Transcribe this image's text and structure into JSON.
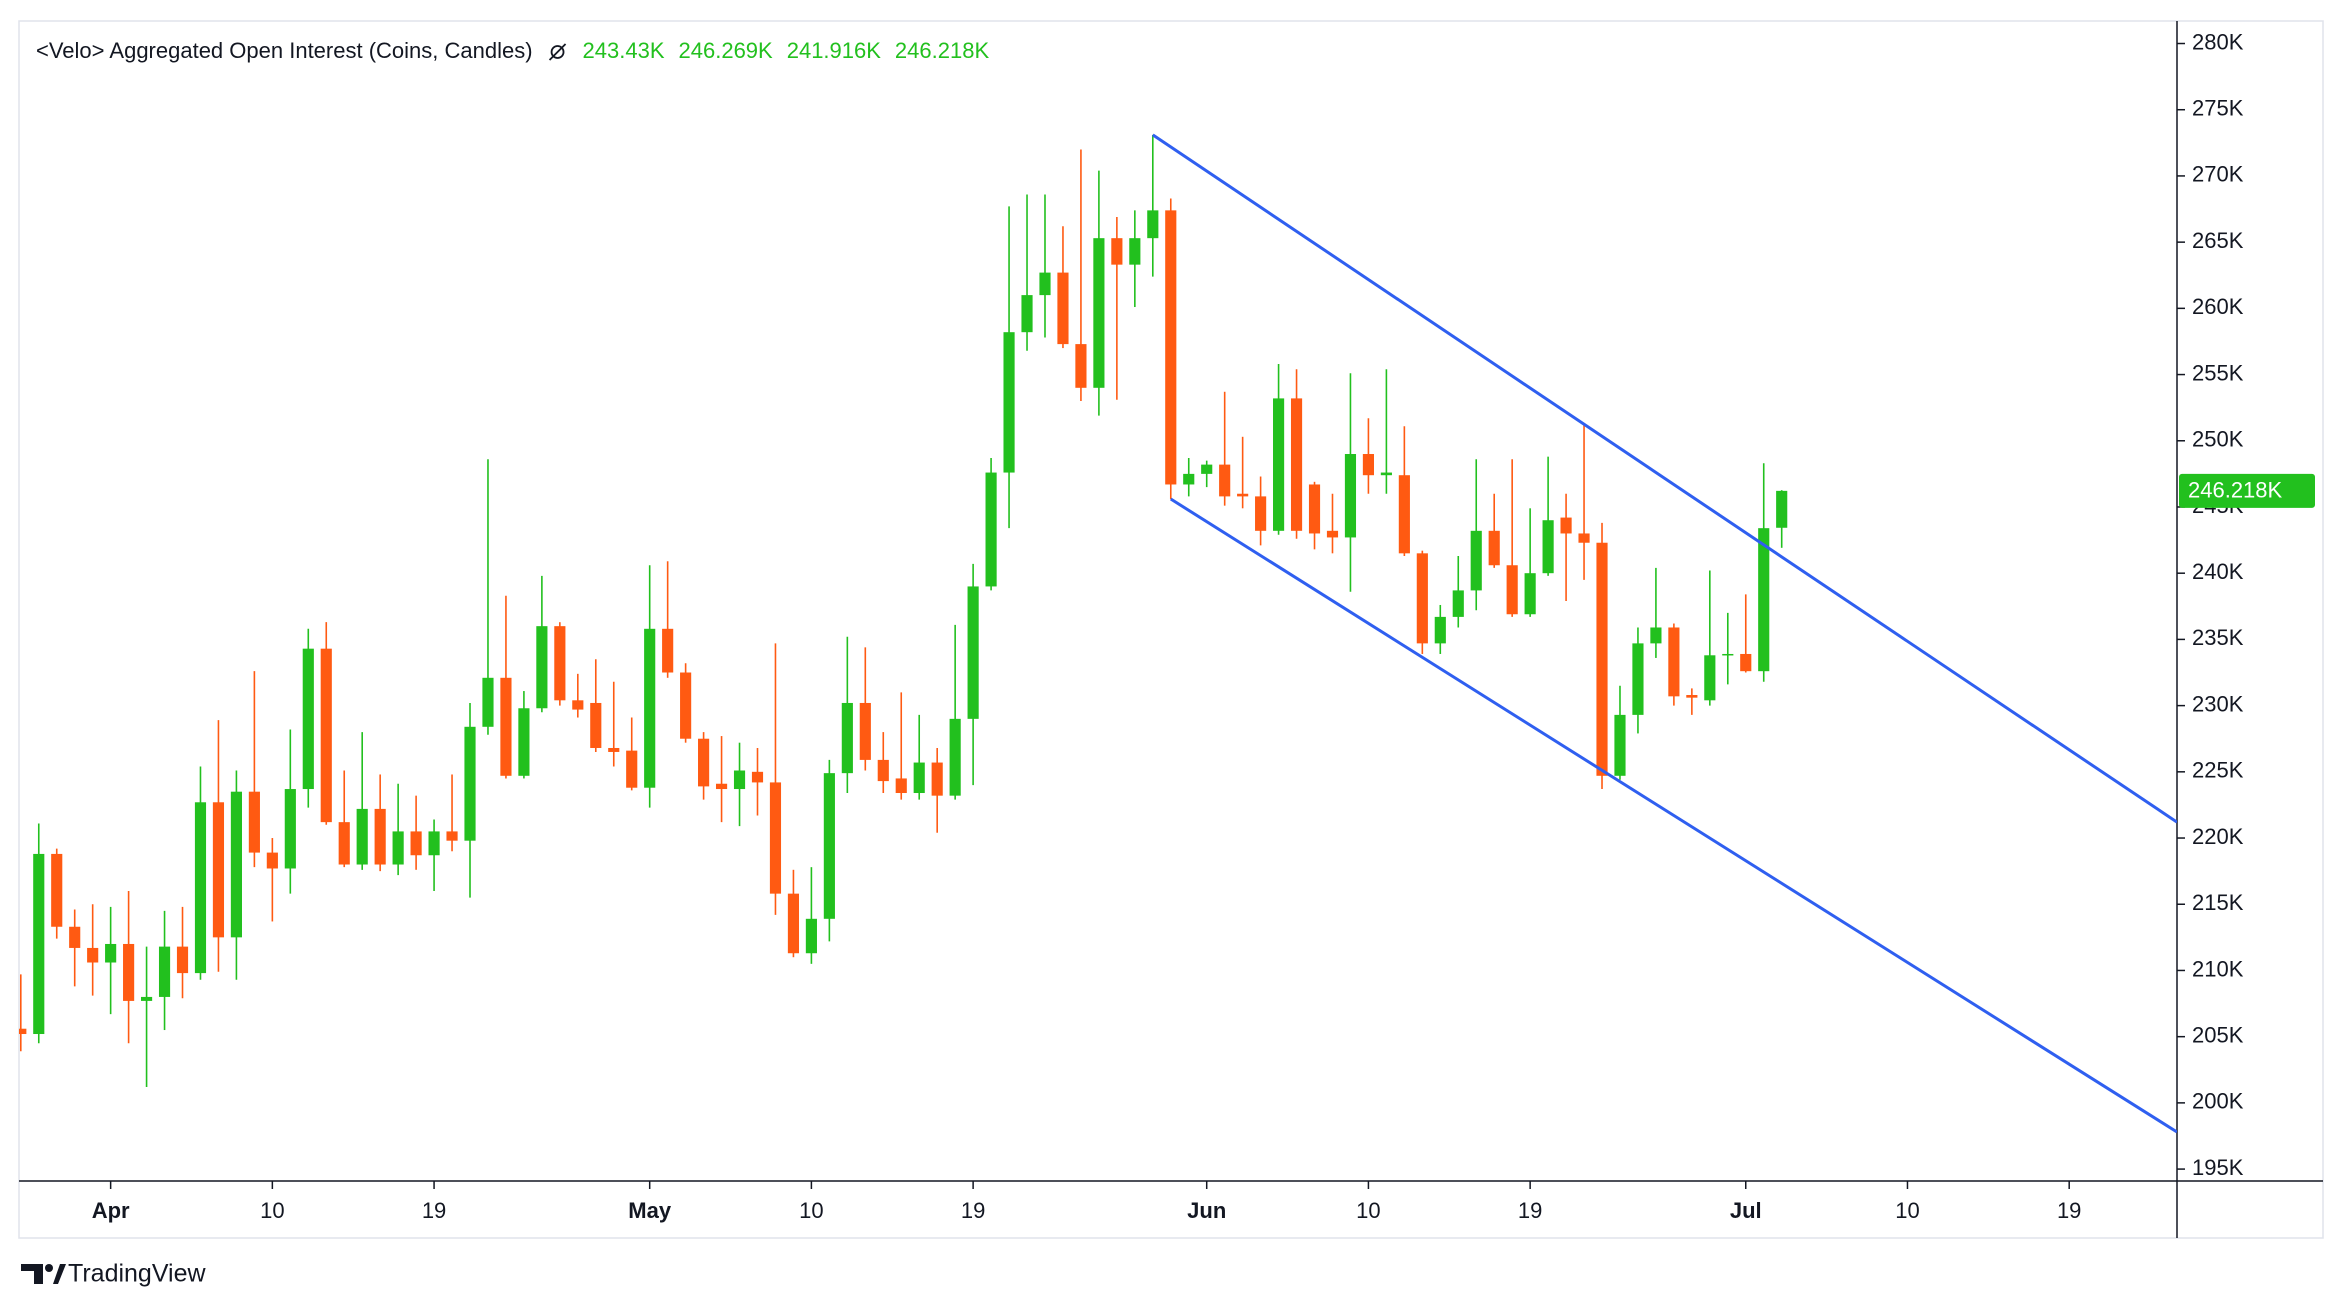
{
  "chart_data": {
    "type": "candlestick",
    "title": "<Velo> Aggregated Open Interest (Coins, Candles)",
    "ohlc_labels": [
      "243.43K",
      "246.269K",
      "241.916K",
      "246.218K"
    ],
    "last_price_label": "246.218K",
    "branding": "TradingView",
    "up_color": "#22c01e",
    "down_color": "#ff5a12",
    "x": [
      "Mar 27",
      "Mar 28",
      "Mar 29",
      "Mar 30",
      "Mar 31",
      "Apr 1",
      "Apr 2",
      "Apr 3",
      "Apr 4",
      "Apr 5",
      "Apr 6",
      "Apr 7",
      "Apr 8",
      "Apr 9",
      "Apr 10",
      "Apr 11",
      "Apr 12",
      "Apr 13",
      "Apr 14",
      "Apr 15",
      "Apr 16",
      "Apr 17",
      "Apr 18",
      "Apr 19",
      "Apr 20",
      "Apr 21",
      "Apr 22",
      "Apr 23",
      "Apr 24",
      "Apr 25",
      "Apr 26",
      "Apr 27",
      "Apr 28",
      "Apr 29",
      "Apr 30",
      "May 1",
      "May 2",
      "May 3",
      "May 4",
      "May 5",
      "May 6",
      "May 7",
      "May 8",
      "May 9",
      "May 10",
      "May 11",
      "May 12",
      "May 13",
      "May 14",
      "May 15",
      "May 16",
      "May 17",
      "May 18",
      "May 19",
      "May 20",
      "May 21",
      "May 22",
      "May 23",
      "May 24",
      "May 25",
      "May 26",
      "May 27",
      "May 28",
      "May 29",
      "May 30",
      "May 31",
      "Jun 1",
      "Jun 2",
      "Jun 3",
      "Jun 4",
      "Jun 5",
      "Jun 6",
      "Jun 7",
      "Jun 8",
      "Jun 9",
      "Jun 10",
      "Jun 11",
      "Jun 12",
      "Jun 13",
      "Jun 14",
      "Jun 15",
      "Jun 16",
      "Jun 17",
      "Jun 18",
      "Jun 19",
      "Jun 20",
      "Jun 21",
      "Jun 22",
      "Jun 23",
      "Jun 24",
      "Jun 25",
      "Jun 26",
      "Jun 27",
      "Jun 28",
      "Jun 29",
      "Jun 30",
      "Jul 1",
      "Jul 2",
      "Jul 3"
    ],
    "open": [
      205.6,
      205.2,
      218.8,
      213.3,
      211.7,
      210.6,
      212,
      207.7,
      208,
      211.8,
      209.8,
      222.7,
      212.5,
      223.5,
      218.9,
      217.7,
      223.7,
      234.3,
      221.2,
      218,
      222.2,
      218,
      220.5,
      218.7,
      220.5,
      219.8,
      228.4,
      232.1,
      224.7,
      229.8,
      236,
      230.4,
      230.2,
      226.8,
      226.6,
      223.8,
      235.8,
      232.5,
      227.5,
      224.1,
      223.7,
      225,
      224.2,
      215.8,
      211.3,
      213.9,
      224.9,
      230.2,
      225.9,
      224.5,
      223.4,
      225.7,
      223.2,
      229,
      239,
      247.6,
      258.2,
      261,
      262.7,
      257.3,
      254,
      265.3,
      263.3,
      265.3,
      267.4,
      246.7,
      247.5,
      248.2,
      246,
      245.8,
      243.2,
      253.2,
      246.7,
      243.2,
      242.7,
      249,
      247.4,
      247.4,
      241.5,
      234.7,
      236.7,
      238.7,
      243.2,
      240.6,
      236.9,
      240,
      244.2,
      243,
      242.3,
      224.7,
      229.3,
      234.7,
      235.9,
      230.8,
      230.4,
      233.8,
      233.9,
      232.6,
      243.43
    ],
    "high": [
      209.7,
      221.1,
      219.2,
      214.6,
      215,
      214.8,
      216,
      211.8,
      214.5,
      214.8,
      225.4,
      228.9,
      225.1,
      232.6,
      220,
      228.2,
      235.8,
      236.3,
      225.1,
      228,
      224.8,
      224.1,
      223.2,
      221.4,
      224.8,
      230.2,
      248.6,
      238.3,
      231.1,
      239.8,
      236.3,
      232.4,
      233.5,
      231.8,
      229.1,
      240.6,
      240.9,
      233.2,
      228,
      227.7,
      227.2,
      226.8,
      234.7,
      217.6,
      217.8,
      225.9,
      235.2,
      234.4,
      228,
      231,
      229.3,
      226.8,
      236.1,
      240.7,
      248.7,
      267.7,
      268.6,
      268.6,
      266.2,
      272,
      270.4,
      266.9,
      267.4,
      273.1,
      268.3,
      248.7,
      248.5,
      253.7,
      250.3,
      247.3,
      255.8,
      255.4,
      246.9,
      246,
      255.1,
      251.7,
      255.4,
      251.1,
      241.7,
      237.6,
      241.3,
      248.6,
      246,
      248.6,
      244.9,
      248.8,
      246,
      251.3,
      243.8,
      231.5,
      235.9,
      240.4,
      236.2,
      231.3,
      240.2,
      237,
      238.4,
      248.3,
      246.269
    ],
    "low": [
      203.9,
      204.5,
      212.4,
      208.8,
      208.1,
      206.7,
      204.5,
      201.2,
      205.5,
      207.9,
      209.3,
      209.9,
      209.3,
      217.8,
      213.7,
      215.8,
      222.3,
      221,
      217.8,
      217.6,
      217.5,
      217.2,
      217.6,
      216,
      219,
      215.5,
      227.8,
      224.5,
      224.5,
      229.5,
      230,
      229.1,
      226.5,
      225.4,
      223.6,
      222.3,
      232.1,
      227.2,
      222.9,
      221.2,
      220.9,
      221.7,
      214.2,
      211,
      210.5,
      212.2,
      223.4,
      225.1,
      223.4,
      222.9,
      222.9,
      220.4,
      222.9,
      224,
      238.7,
      243.4,
      256.8,
      257.8,
      257,
      253,
      251.9,
      253.1,
      260.1,
      262.4,
      245.6,
      245.8,
      246.5,
      245.1,
      244.9,
      242.1,
      242.9,
      242.6,
      241.8,
      241.5,
      238.6,
      246,
      246,
      241.3,
      233.9,
      233.9,
      235.9,
      237.2,
      240.4,
      236.7,
      236.7,
      239.8,
      237.9,
      239.5,
      223.7,
      224.4,
      227.9,
      233.6,
      230,
      229.3,
      230,
      231.6,
      232.5,
      231.8,
      241.916
    ],
    "close": [
      205.2,
      218.8,
      213.3,
      211.7,
      210.6,
      212,
      207.7,
      208,
      211.8,
      209.8,
      222.7,
      212.5,
      223.5,
      218.9,
      217.7,
      223.7,
      234.3,
      221.2,
      218,
      222.2,
      218,
      220.5,
      218.7,
      220.5,
      219.8,
      228.4,
      232.1,
      224.7,
      229.8,
      236,
      230.4,
      229.7,
      226.8,
      226.5,
      223.8,
      235.8,
      232.5,
      227.5,
      223.9,
      223.7,
      225.1,
      224.2,
      215.8,
      211.3,
      213.9,
      224.9,
      230.2,
      225.9,
      224.3,
      223.4,
      225.7,
      223.2,
      229,
      239,
      247.6,
      258.2,
      261,
      262.7,
      257.3,
      254,
      265.3,
      263.3,
      265.3,
      267.4,
      246.7,
      247.5,
      248.2,
      245.8,
      245.8,
      243.2,
      253.2,
      243.2,
      243,
      242.7,
      249,
      247.4,
      247.6,
      241.5,
      234.7,
      236.7,
      238.7,
      243.2,
      240.6,
      236.9,
      240,
      244,
      243,
      242.3,
      224.7,
      229.3,
      234.7,
      235.9,
      230.7,
      230.6,
      233.8,
      233.9,
      232.6,
      243.4,
      246.218
    ],
    "channel": [
      {
        "color": "#2f5ff0",
        "x": [
          "May 29",
          "Jul 25"
        ],
        "values": [
          273.1,
          221.2
        ]
      },
      {
        "color": "#2f5ff0",
        "x": [
          "May 30",
          "Jul 25"
        ],
        "values": [
          245.6,
          197.8
        ]
      }
    ],
    "xlim": [
      "Mar 27",
      "Jul 25"
    ],
    "xticks": [
      {
        "value": "Apr 1",
        "label": "Apr"
      },
      {
        "value": "Apr 10",
        "label": "10"
      },
      {
        "value": "Apr 19",
        "label": "19"
      },
      {
        "value": "May 1",
        "label": "May"
      },
      {
        "value": "May 10",
        "label": "10"
      },
      {
        "value": "May 19",
        "label": "19"
      },
      {
        "value": "Jun 1",
        "label": "Jun"
      },
      {
        "value": "Jun 10",
        "label": "10"
      },
      {
        "value": "Jun 19",
        "label": "19"
      },
      {
        "value": "Jul 1",
        "label": "Jul"
      },
      {
        "value": "Jul 10",
        "label": "10"
      },
      {
        "value": "Jul 19",
        "label": "19"
      }
    ],
    "ylim": [
      194.1,
      281.7
    ],
    "yticks": [
      {
        "value": 195,
        "label": "195K"
      },
      {
        "value": 200,
        "label": "200K"
      },
      {
        "value": 205,
        "label": "205K"
      },
      {
        "value": 210,
        "label": "210K"
      },
      {
        "value": 215,
        "label": "215K"
      },
      {
        "value": 220,
        "label": "220K"
      },
      {
        "value": 225,
        "label": "225K"
      },
      {
        "value": 230,
        "label": "230K"
      },
      {
        "value": 235,
        "label": "235K"
      },
      {
        "value": 240,
        "label": "240K"
      },
      {
        "value": 245,
        "label": "245K"
      },
      {
        "value": 250,
        "label": "250K"
      },
      {
        "value": 255,
        "label": "255K"
      },
      {
        "value": 260,
        "label": "260K"
      },
      {
        "value": 265,
        "label": "265K"
      },
      {
        "value": 270,
        "label": "270K"
      },
      {
        "value": 275,
        "label": "275K"
      },
      {
        "value": 280,
        "label": "280K"
      }
    ]
  }
}
